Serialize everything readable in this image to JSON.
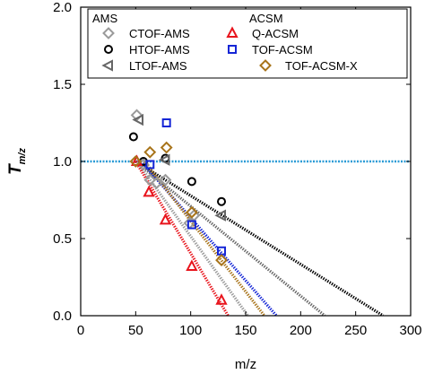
{
  "chart_data": {
    "type": "scatter",
    "xlabel": "m/z",
    "ylabel_main": "T",
    "ylabel_sub": "m/z",
    "xlim": [
      0,
      300
    ],
    "ylim": [
      0.0,
      2.0
    ],
    "xticks": [
      "0",
      "50",
      "100",
      "150",
      "200",
      "250",
      "300"
    ],
    "yticks": [
      "0.0",
      "0.5",
      "1.0",
      "1.5",
      "2.0"
    ],
    "legend_placement": "top-right",
    "legend_headers": {
      "ams": "AMS",
      "acsm": "ACSM"
    },
    "reference_line": {
      "y": 1.0,
      "color": "#2a9bd6"
    },
    "series": [
      {
        "name": "CTOF-AMS",
        "group": "ams",
        "marker": "diamond",
        "color": "#9a9a9a",
        "points": [
          [
            51,
            1.3
          ],
          [
            57,
            0.98
          ],
          [
            63,
            0.88
          ],
          [
            69,
            0.86
          ],
          [
            77,
            0.88
          ],
          [
            99,
            0.6
          ],
          [
            103,
            0.65
          ]
        ],
        "fit": [
          [
            51,
            1.0
          ],
          [
            152,
            0.0
          ]
        ]
      },
      {
        "name": "HTOF-AMS",
        "group": "ams",
        "marker": "circle",
        "color": "#000000",
        "points": [
          [
            48,
            1.16
          ],
          [
            57,
            1.0
          ],
          [
            77,
            1.02
          ],
          [
            101,
            0.87
          ],
          [
            128,
            0.74
          ]
        ],
        "fit": [
          [
            50,
            1.0
          ],
          [
            275,
            0.0
          ]
        ]
      },
      {
        "name": "LTOF-AMS",
        "group": "ams",
        "marker": "triangle-left",
        "color": "#666666",
        "points": [
          [
            53,
            1.27
          ],
          [
            77,
            1.01
          ],
          [
            128,
            0.65
          ]
        ],
        "fit": [
          [
            50,
            1.0
          ],
          [
            222,
            0.0
          ]
        ]
      },
      {
        "name": "Q-ACSM",
        "group": "acsm",
        "marker": "triangle-up",
        "color": "#e8141c",
        "points": [
          [
            51,
            1.0
          ],
          [
            62,
            0.8
          ],
          [
            77,
            0.62
          ],
          [
            101,
            0.32
          ],
          [
            128,
            0.1
          ]
        ],
        "fit": [
          [
            50,
            1.0
          ],
          [
            134,
            0.0
          ]
        ]
      },
      {
        "name": "TOF-ACSM",
        "group": "acsm",
        "marker": "square",
        "color": "#1526d6",
        "points": [
          [
            63,
            0.98
          ],
          [
            78,
            1.25
          ],
          [
            101,
            0.59
          ],
          [
            128,
            0.42
          ]
        ],
        "fit": [
          [
            55,
            1.0
          ],
          [
            178,
            0.0
          ]
        ]
      },
      {
        "name": "TOF-ACSM-X",
        "group": "acsm",
        "marker": "diamond",
        "color": "#a8741a",
        "points": [
          [
            50,
            1.0
          ],
          [
            63,
            1.06
          ],
          [
            78,
            1.09
          ],
          [
            101,
            0.67
          ],
          [
            128,
            0.36
          ]
        ],
        "fit": [
          [
            58,
            1.0
          ],
          [
            167,
            0.0
          ]
        ]
      }
    ]
  }
}
